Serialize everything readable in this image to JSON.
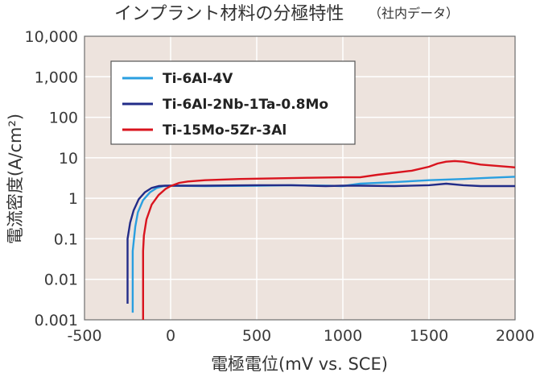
{
  "chart_data": {
    "type": "line",
    "title": "インプラント材料の分極特性",
    "subtitle": "（社内データ）",
    "xlabel": "電極電位(mV vs. SCE)",
    "ylabel": "電流密度(A/cm²)",
    "xlim": [
      -500,
      2000
    ],
    "ylim": [
      0.001,
      10000
    ],
    "yscale": "log",
    "x_ticks": [
      -500,
      0,
      500,
      1000,
      1500,
      2000
    ],
    "x_tick_labels": [
      "-500",
      "0",
      "500",
      "1000",
      "1500",
      "2000"
    ],
    "y_ticks": [
      0.001,
      0.01,
      0.1,
      1,
      10,
      100,
      1000,
      10000
    ],
    "y_tick_labels": [
      "0.001",
      "0.01",
      "0.1",
      "1",
      "10",
      "100",
      "1,000",
      "10,000"
    ],
    "grid": true,
    "legend_position": "top-left",
    "plot_background": "#ede3dd",
    "grid_color": "#ffffff",
    "series": [
      {
        "name": "Ti-6Al-4V",
        "color": "#2a9fe0",
        "x": [
          -220,
          -220,
          -205,
          -190,
          -160,
          -120,
          -80,
          -40,
          0,
          200,
          500,
          700,
          900,
          1000,
          1100,
          1300,
          1500,
          1700,
          1850,
          2000
        ],
        "y": [
          0.0015,
          0.05,
          0.2,
          0.45,
          0.9,
          1.4,
          1.8,
          2.0,
          2.05,
          2.0,
          2.05,
          2.1,
          2.05,
          2.0,
          2.3,
          2.5,
          2.8,
          3.0,
          3.2,
          3.4
        ]
      },
      {
        "name": "Ti-6Al-2Nb-1Ta-0.8Mo",
        "color": "#222c88",
        "x": [
          -250,
          -250,
          -235,
          -215,
          -185,
          -150,
          -110,
          -70,
          -30,
          0,
          200,
          500,
          700,
          900,
          1000,
          1100,
          1300,
          1500,
          1600,
          1700,
          1800,
          2000
        ],
        "y": [
          0.0025,
          0.1,
          0.25,
          0.5,
          0.95,
          1.4,
          1.8,
          2.0,
          2.05,
          2.05,
          2.05,
          2.1,
          2.1,
          2.0,
          2.05,
          2.05,
          2.0,
          2.1,
          2.3,
          2.1,
          2.0,
          2.0
        ]
      },
      {
        "name": "Ti-15Mo-5Zr-3Al",
        "color": "#d9141e",
        "x": [
          -160,
          -160,
          -155,
          -140,
          -110,
          -70,
          -30,
          0,
          50,
          100,
          200,
          400,
          600,
          800,
          1000,
          1100,
          1200,
          1400,
          1500,
          1550,
          1600,
          1650,
          1700,
          1800,
          2000
        ],
        "y": [
          0.001,
          0.05,
          0.12,
          0.3,
          0.7,
          1.2,
          1.7,
          2.0,
          2.4,
          2.6,
          2.8,
          3.0,
          3.1,
          3.2,
          3.3,
          3.3,
          3.8,
          4.8,
          6.0,
          7.2,
          8.0,
          8.3,
          8.0,
          6.8,
          5.8
        ]
      }
    ]
  }
}
